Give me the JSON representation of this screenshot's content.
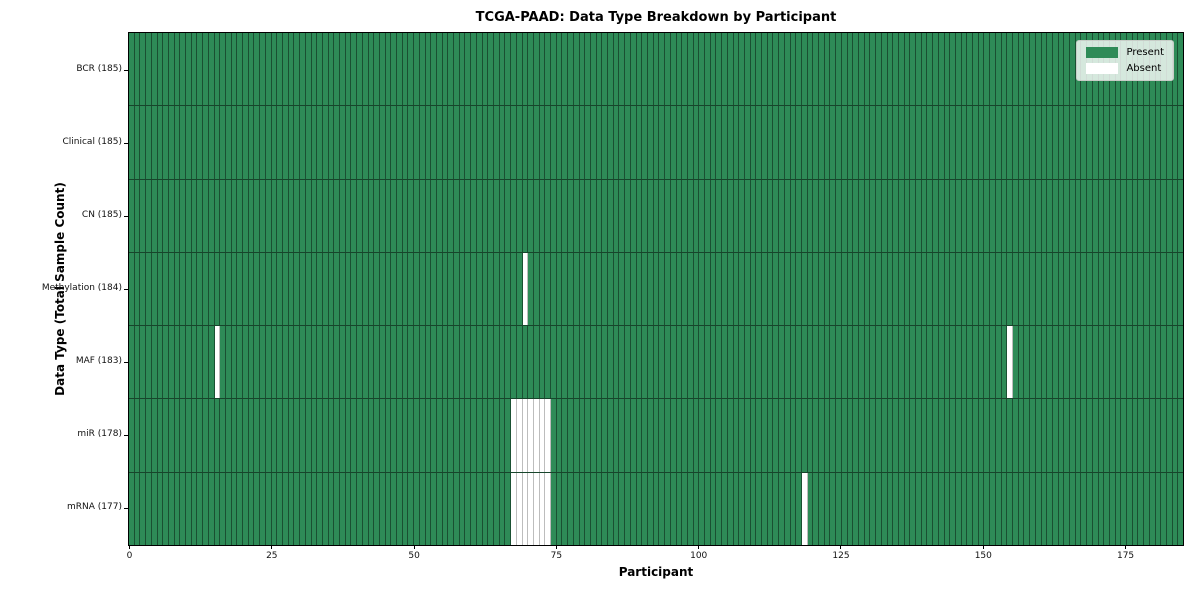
{
  "chart_data": {
    "type": "heatmap",
    "title": "TCGA-PAAD: Data Type Breakdown by Participant",
    "xlabel": "Participant",
    "ylabel": "Data Type (Total Sample Count)",
    "n_participants": 185,
    "xlim": [
      0,
      185
    ],
    "x_ticks": [
      0,
      25,
      50,
      75,
      100,
      125,
      150,
      175
    ],
    "grid": "per-participant vertical lines and per-row horizontal separators",
    "legend_position": "upper right",
    "legend": [
      {
        "label": "Present",
        "color": "#2e8b57"
      },
      {
        "label": "Absent",
        "color": "#ffffff"
      }
    ],
    "rows": [
      {
        "label": "BCR (185)",
        "data_type": "BCR",
        "present_count": 185,
        "absent_participants": []
      },
      {
        "label": "Clinical (185)",
        "data_type": "Clinical",
        "present_count": 185,
        "absent_participants": []
      },
      {
        "label": "CN (185)",
        "data_type": "CN",
        "present_count": 185,
        "absent_participants": []
      },
      {
        "label": "Methylation (184)",
        "data_type": "Methylation",
        "present_count": 184,
        "absent_participants": [
          69
        ]
      },
      {
        "label": "MAF (183)",
        "data_type": "MAF",
        "present_count": 183,
        "absent_participants": [
          15,
          154
        ]
      },
      {
        "label": "miR (178)",
        "data_type": "miR",
        "present_count": 178,
        "absent_participants": [
          67,
          68,
          69,
          70,
          71,
          72,
          73
        ]
      },
      {
        "label": "mRNA (177)",
        "data_type": "mRNA",
        "present_count": 177,
        "absent_participants": [
          67,
          68,
          69,
          70,
          71,
          72,
          73,
          118
        ]
      }
    ],
    "colors": {
      "present": "#2e8b57",
      "absent": "#ffffff",
      "cell_edge_on_green": "rgba(0,0,0,0.42)",
      "cell_edge_on_white": "#bdbdbd",
      "row_separator": "rgba(0,0,0,0.5)",
      "spine": "#000000"
    }
  }
}
